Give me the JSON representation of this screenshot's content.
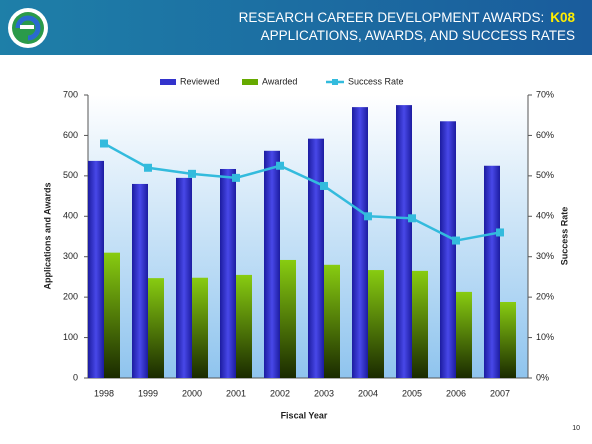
{
  "chart_data": {
    "type": "bar_line",
    "title": "RESEARCH CAREER DEVELOPMENT AWARDS:",
    "title_highlight": "K08",
    "subtitle": "APPLICATIONS, AWARDS, AND SUCCESS RATES",
    "categories": [
      "1998",
      "1999",
      "2000",
      "2001",
      "2002",
      "2003",
      "2004",
      "2005",
      "2006",
      "2007"
    ],
    "series": [
      {
        "name": "Reviewed",
        "color": "#3333cc",
        "values": [
          537,
          480,
          495,
          517,
          562,
          592,
          670,
          675,
          635,
          525
        ]
      },
      {
        "name": "Awarded",
        "color": "#66aa00",
        "values": [
          310,
          247,
          248,
          255,
          292,
          280,
          267,
          265,
          213,
          188
        ]
      },
      {
        "name": "Success Rate",
        "color": "#33bbdd",
        "axis": "y2",
        "values": [
          58,
          52,
          50.5,
          49.5,
          52.5,
          47.5,
          40,
          39.5,
          34,
          36
        ]
      }
    ],
    "xlabel": "Fiscal Year",
    "ylabel": "Applications and Awards",
    "y2label": "Success Rate",
    "ylim": [
      0,
      700
    ],
    "yticks": [
      0,
      100,
      200,
      300,
      400,
      500,
      600,
      700
    ],
    "y2lim": [
      0,
      70
    ],
    "y2ticks": [
      {
        "value": 0,
        "label": "0%"
      },
      {
        "value": 10,
        "label": "10%"
      },
      {
        "value": 20,
        "label": "20%"
      },
      {
        "value": 30,
        "label": "30%"
      },
      {
        "value": 40,
        "label": "40%"
      },
      {
        "value": 50,
        "label": "50%"
      },
      {
        "value": 60,
        "label": "60%"
      },
      {
        "value": 70,
        "label": "70%"
      }
    ],
    "legend": "top"
  },
  "page_number": "10"
}
